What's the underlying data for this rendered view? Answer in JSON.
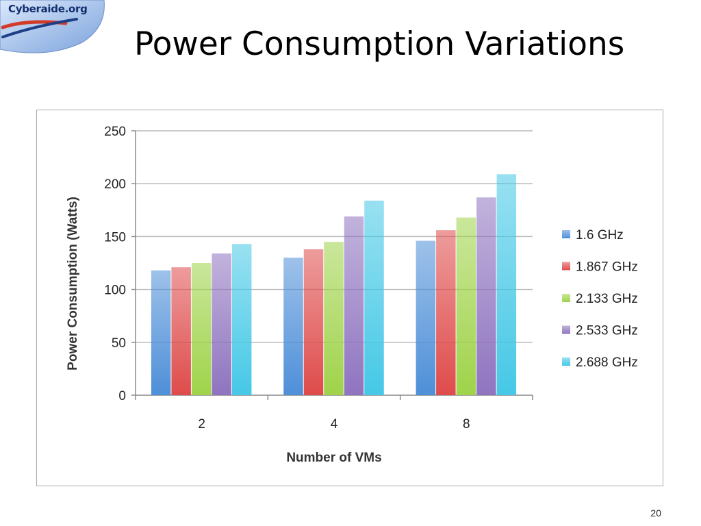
{
  "logo": {
    "text": "Cyberaide.org"
  },
  "slide": {
    "title": "Power Consumption Variations",
    "page_number": "20"
  },
  "colors": {
    "series": [
      "#4e8fd8",
      "#df4b4b",
      "#9fd34a",
      "#8f74c0",
      "#45c8e6"
    ],
    "grid": "#b8b8b8",
    "axis": "#8a8a8a"
  },
  "chart_data": {
    "type": "bar",
    "title": "",
    "xlabel": "Number of VMs",
    "ylabel": "Power Consumption (Watts)",
    "categories": [
      "2",
      "4",
      "8"
    ],
    "ylim": [
      0,
      250
    ],
    "yticks": [
      "0",
      "50",
      "100",
      "150",
      "200",
      "250"
    ],
    "grid": true,
    "legend_position": "right",
    "series": [
      {
        "name": "1.6 GHz",
        "values": [
          118,
          130,
          146
        ]
      },
      {
        "name": "1.867 GHz",
        "values": [
          121,
          138,
          156
        ]
      },
      {
        "name": "2.133 GHz",
        "values": [
          125,
          145,
          168
        ]
      },
      {
        "name": "2.533 GHz",
        "values": [
          134,
          169,
          187
        ]
      },
      {
        "name": "2.688 GHz",
        "values": [
          143,
          184,
          209
        ]
      }
    ]
  }
}
